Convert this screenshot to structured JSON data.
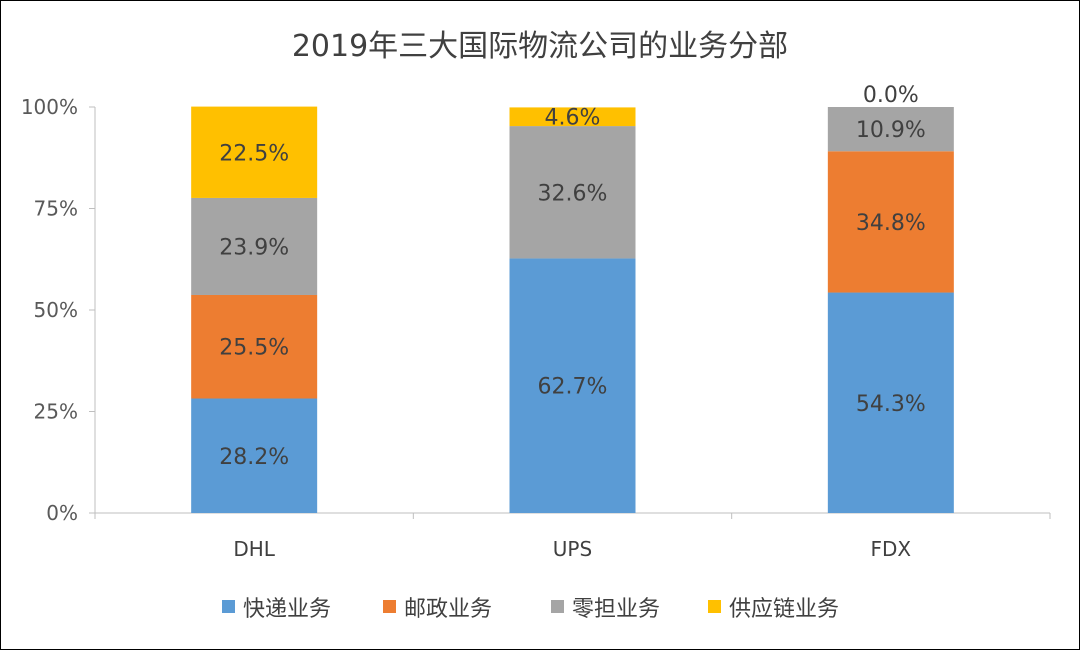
{
  "chart_data": {
    "type": "bar",
    "stacked": "percent",
    "title": "2019年三大国际物流公司的业务分部",
    "categories": [
      "DHL",
      "UPS",
      "FDX"
    ],
    "series": [
      {
        "name": "快递业务",
        "color": "#5B9BD5",
        "values": [
          28.2,
          62.7,
          54.3
        ],
        "labels": [
          "28.2%",
          "62.7%",
          "54.3%"
        ]
      },
      {
        "name": "邮政业务",
        "color": "#ED7D31",
        "values": [
          25.5,
          0,
          34.8
        ],
        "labels": [
          "25.5%",
          null,
          "34.8%"
        ]
      },
      {
        "name": "零担业务",
        "color": "#A5A5A5",
        "values": [
          23.9,
          32.6,
          10.9
        ],
        "labels": [
          "23.9%",
          "32.6%",
          "10.9%"
        ]
      },
      {
        "name": "供应链业务",
        "color": "#FFC000",
        "values": [
          22.5,
          4.6,
          0.0
        ],
        "labels": [
          "22.5%",
          "4.6%",
          "0.0%"
        ]
      }
    ],
    "yticks": [
      "0%",
      "25%",
      "50%",
      "75%",
      "100%"
    ],
    "ylim": [
      0,
      100
    ],
    "grid": false,
    "legend": "bottom"
  }
}
